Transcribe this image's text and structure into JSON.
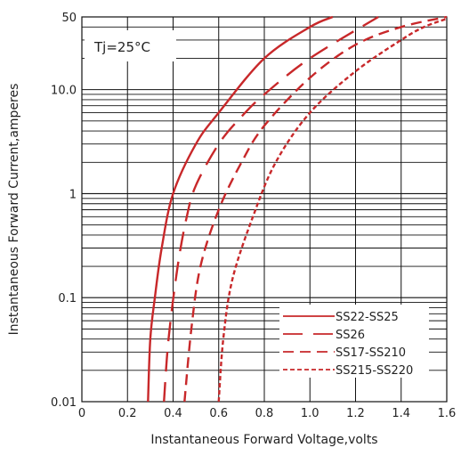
{
  "chart_data": {
    "type": "line",
    "x_label": "Instantaneous Forward Voltage,volts",
    "y_label": "Instantaneous Forward Current,amperes",
    "x_range": [
      0,
      1.6
    ],
    "y_range": [
      0.01,
      50
    ],
    "y_scale": "log",
    "x_ticks": [
      "0",
      "0.2",
      "0.4",
      "0.6",
      "0.8",
      "1.0",
      "1.2",
      "1.4",
      "1.6"
    ],
    "y_ticks": [
      {
        "value": 0.01,
        "label": "0.01"
      },
      {
        "value": 0.1,
        "label": "0.1"
      },
      {
        "value": 1,
        "label": "1"
      },
      {
        "value": 10,
        "label": "10.0"
      },
      {
        "value": 50,
        "label": "50"
      }
    ],
    "grid": true,
    "legend_position": "bottom-right",
    "annotation": "Tj=25°C",
    "line_color": "#c8282a",
    "series": [
      {
        "name": "SS22-SS25",
        "dash": "solid",
        "points": [
          [
            0.29,
            0.01
          ],
          [
            0.3,
            0.04
          ],
          [
            0.32,
            0.1
          ],
          [
            0.35,
            0.3
          ],
          [
            0.4,
            1
          ],
          [
            0.5,
            3
          ],
          [
            0.6,
            6
          ],
          [
            0.8,
            20
          ],
          [
            1.0,
            40
          ],
          [
            1.1,
            50
          ]
        ]
      },
      {
        "name": "SS26",
        "dash": "long-dash",
        "points": [
          [
            0.36,
            0.01
          ],
          [
            0.38,
            0.04
          ],
          [
            0.42,
            0.2
          ],
          [
            0.46,
            0.6
          ],
          [
            0.5,
            1.2
          ],
          [
            0.6,
            3
          ],
          [
            0.7,
            5.5
          ],
          [
            0.8,
            9
          ],
          [
            1.0,
            20
          ],
          [
            1.3,
            50
          ]
        ]
      },
      {
        "name": "SS17-SS210",
        "dash": "dash",
        "points": [
          [
            0.45,
            0.01
          ],
          [
            0.48,
            0.05
          ],
          [
            0.52,
            0.2
          ],
          [
            0.6,
            0.7
          ],
          [
            0.7,
            2
          ],
          [
            0.8,
            4.5
          ],
          [
            1.0,
            13
          ],
          [
            1.2,
            27
          ],
          [
            1.4,
            40
          ],
          [
            1.6,
            50
          ]
        ]
      },
      {
        "name": "SS215-SS220",
        "dash": "short-dash",
        "points": [
          [
            0.6,
            0.01
          ],
          [
            0.62,
            0.04
          ],
          [
            0.66,
            0.15
          ],
          [
            0.75,
            0.6
          ],
          [
            0.85,
            2
          ],
          [
            1.0,
            6
          ],
          [
            1.2,
            15
          ],
          [
            1.4,
            30
          ],
          [
            1.5,
            40
          ],
          [
            1.6,
            48
          ]
        ]
      }
    ]
  }
}
